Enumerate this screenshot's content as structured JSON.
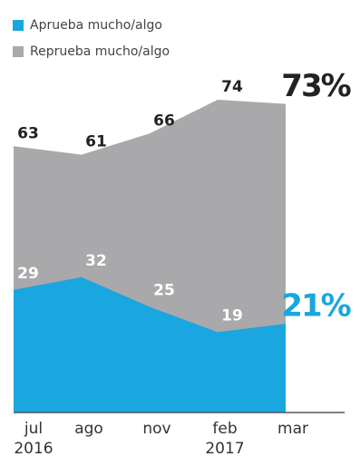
{
  "chart_data": {
    "type": "area",
    "categories": [
      "jul\n2016",
      "ago",
      "nov",
      "feb\n2017",
      "mar"
    ],
    "series": [
      {
        "name": "Reprueba mucho/algo",
        "color": "#a9a8aa",
        "values": [
          63,
          61,
          66,
          74,
          73
        ],
        "value_labels": [
          "63",
          "61",
          "66",
          "74",
          "73%"
        ]
      },
      {
        "name": "Aprueba mucho/algo",
        "color": "#1aa6df",
        "values": [
          29,
          32,
          25,
          19,
          21
        ],
        "value_labels": [
          "29",
          "32",
          "25",
          "19",
          "21%"
        ]
      }
    ],
    "ylim": [
      0,
      80
    ]
  }
}
